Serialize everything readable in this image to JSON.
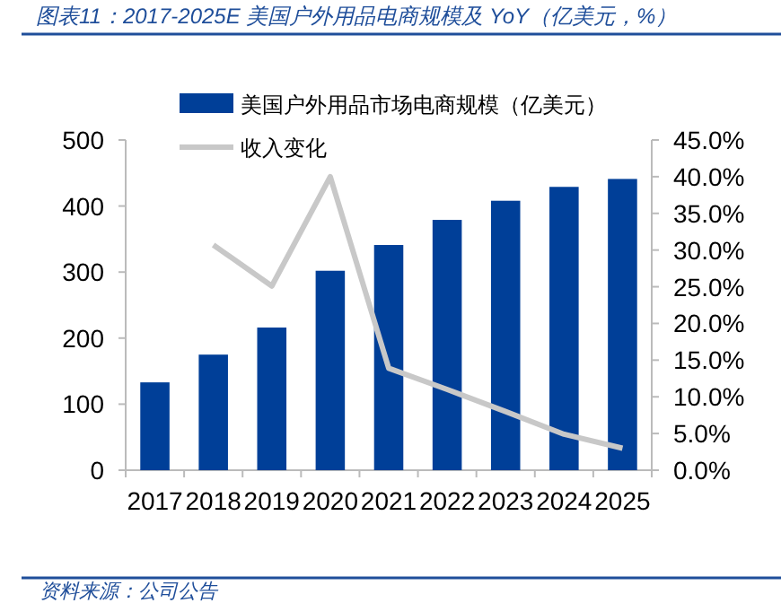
{
  "chart_data": {
    "type": "bar",
    "title": "图表11：2017-2025E 美国户外用品电商规模及 YoY（亿美元，%）",
    "categories": [
      "2017",
      "2018",
      "2019",
      "2020",
      "2021",
      "2022",
      "2023",
      "2024",
      "2025"
    ],
    "series": [
      {
        "name": "美国户外用品市场电商规模（亿美元）",
        "color": "#003f98",
        "values": [
          133,
          175,
          216,
          302,
          341,
          379,
          408,
          429,
          441
        ]
      },
      {
        "name": "收入变化",
        "type": "line",
        "axis": "y2",
        "color": "#c8c8c8",
        "values": [
          null,
          30.7,
          25.1,
          40.0,
          13.9,
          11.0,
          8.0,
          4.9,
          3.0
        ]
      }
    ],
    "ylim": [
      0,
      500
    ],
    "yticks": [
      0,
      100,
      200,
      300,
      400,
      500
    ],
    "y2lim": [
      0,
      45
    ],
    "y2ticks": [
      {
        "value": 0,
        "label": "0.0%"
      },
      {
        "value": 5,
        "label": "5.0%"
      },
      {
        "value": 10,
        "label": "10.0%"
      },
      {
        "value": 15,
        "label": "15.0%"
      },
      {
        "value": 20,
        "label": "20.0%"
      },
      {
        "value": 25,
        "label": "25.0%"
      },
      {
        "value": 30,
        "label": "30.0%"
      },
      {
        "value": 35,
        "label": "35.0%"
      },
      {
        "value": 40,
        "label": "40.0%"
      },
      {
        "value": 45,
        "label": "45.0%"
      }
    ],
    "legend": "top left",
    "grid": false,
    "annotations": [
      "资料来源：公司公告"
    ]
  }
}
